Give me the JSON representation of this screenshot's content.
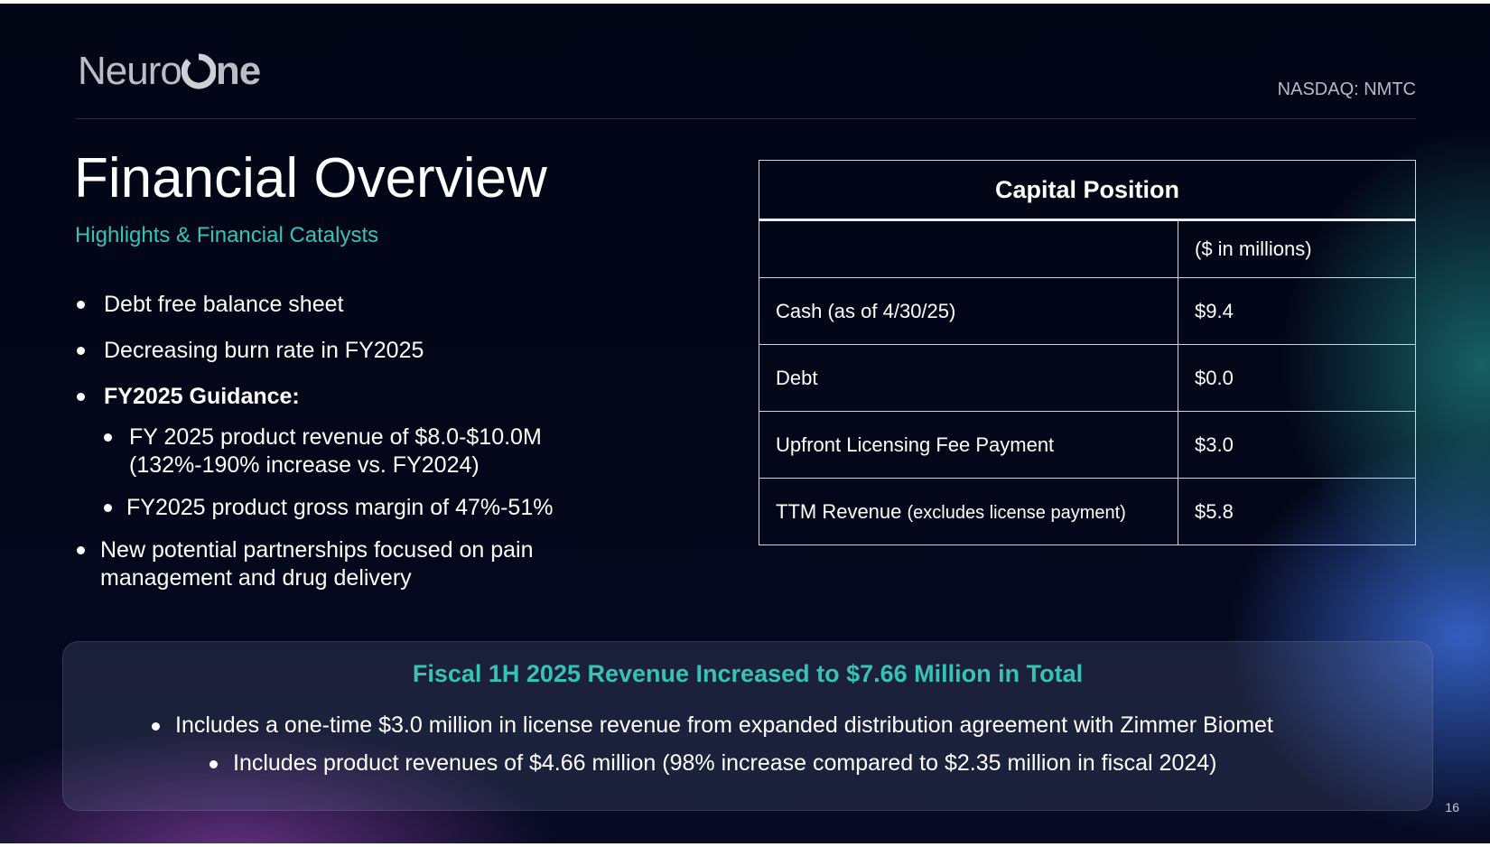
{
  "header": {
    "logo_text_1": "Neuro",
    "logo_text_2": "ne",
    "ticker": "NASDAQ: NMTC"
  },
  "main": {
    "title": "Financial Overview",
    "subtitle": "Highlights & Financial Catalysts",
    "bullets": [
      "Debt free balance sheet",
      "Decreasing burn rate in FY2025",
      "FY2025 Guidance:",
      "FY 2025 product revenue of $8.0-$10.0M",
      "(132%-190% increase vs. FY2024)",
      "FY2025 product gross margin of 47%-51%",
      "New potential partnerships focused on pain",
      "management and drug delivery"
    ]
  },
  "table": {
    "title": "Capital Position",
    "unit_header": "($ in millions)",
    "rows": [
      {
        "label": "Cash (as of 4/30/25)",
        "value": "$9.4"
      },
      {
        "label": "Debt",
        "value": "$0.0"
      },
      {
        "label": "Upfront Licensing Fee Payment",
        "value": "$3.0"
      },
      {
        "label_main": "TTM Revenue ",
        "label_small": "(excludes license payment)",
        "value": "$5.8"
      }
    ]
  },
  "callout": {
    "title": "Fiscal 1H 2025 Revenue Increased to $7.66 Million in Total",
    "lines": [
      "Includes a one-time $3.0 million in license revenue from expanded distribution agreement with Zimmer Biomet",
      "Includes product revenues of $4.66 million (98% increase compared to $2.35 million in fiscal 2024)"
    ]
  },
  "footer": {
    "page_number": "16"
  },
  "colors": {
    "accent": "#35c3b8",
    "background": "#04071a",
    "text": "#ffffff"
  }
}
